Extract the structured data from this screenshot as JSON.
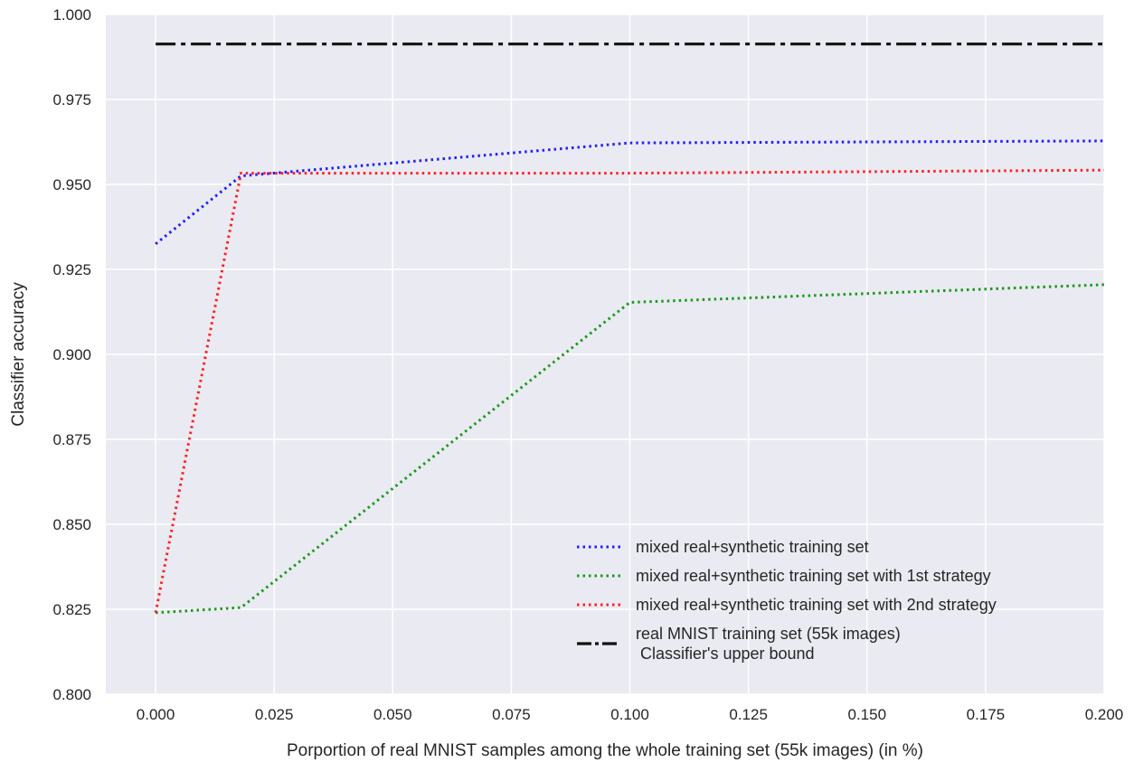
{
  "chart_data": {
    "type": "line",
    "title": "",
    "xlabel": "Porportion of real MNIST samples among the whole training set (55k images) (in %)",
    "ylabel": "Classifier accuracy",
    "xlim": [
      -0.0105,
      0.2
    ],
    "ylim": [
      0.8,
      1.0
    ],
    "xticks": [
      "0.000",
      "0.025",
      "0.050",
      "0.075",
      "0.100",
      "0.125",
      "0.150",
      "0.175",
      "0.200"
    ],
    "yticks": [
      "0.800",
      "0.825",
      "0.850",
      "0.875",
      "0.900",
      "0.925",
      "0.950",
      "0.975",
      "1.000"
    ],
    "grid": true,
    "legend_position": "lower-right",
    "series": [
      {
        "name": "mixed real+synthetic training set",
        "color": "#1f1fff",
        "style": "dotted",
        "x": [
          0.0,
          0.018,
          0.1,
          0.2
        ],
        "y": [
          0.9325,
          0.9525,
          0.9622,
          0.9628
        ]
      },
      {
        "name": "mixed real+synthetic training set with 1st strategy",
        "color": "#1a9a1a",
        "style": "dotted",
        "x": [
          0.0,
          0.018,
          0.1,
          0.2
        ],
        "y": [
          0.824,
          0.8255,
          0.9153,
          0.9205
        ]
      },
      {
        "name": "mixed real+synthetic training set with 2nd strategy",
        "color": "#ff2020",
        "style": "dotted",
        "x": [
          0.0,
          0.018,
          0.1,
          0.2
        ],
        "y": [
          0.824,
          0.9533,
          0.9533,
          0.9542
        ]
      },
      {
        "name": "real MNIST training set (55k images)\n Classifier's upper bound",
        "color": "#111111",
        "style": "dashdot",
        "x": [
          0.0,
          0.2
        ],
        "y": [
          0.9913,
          0.9913
        ]
      }
    ]
  }
}
